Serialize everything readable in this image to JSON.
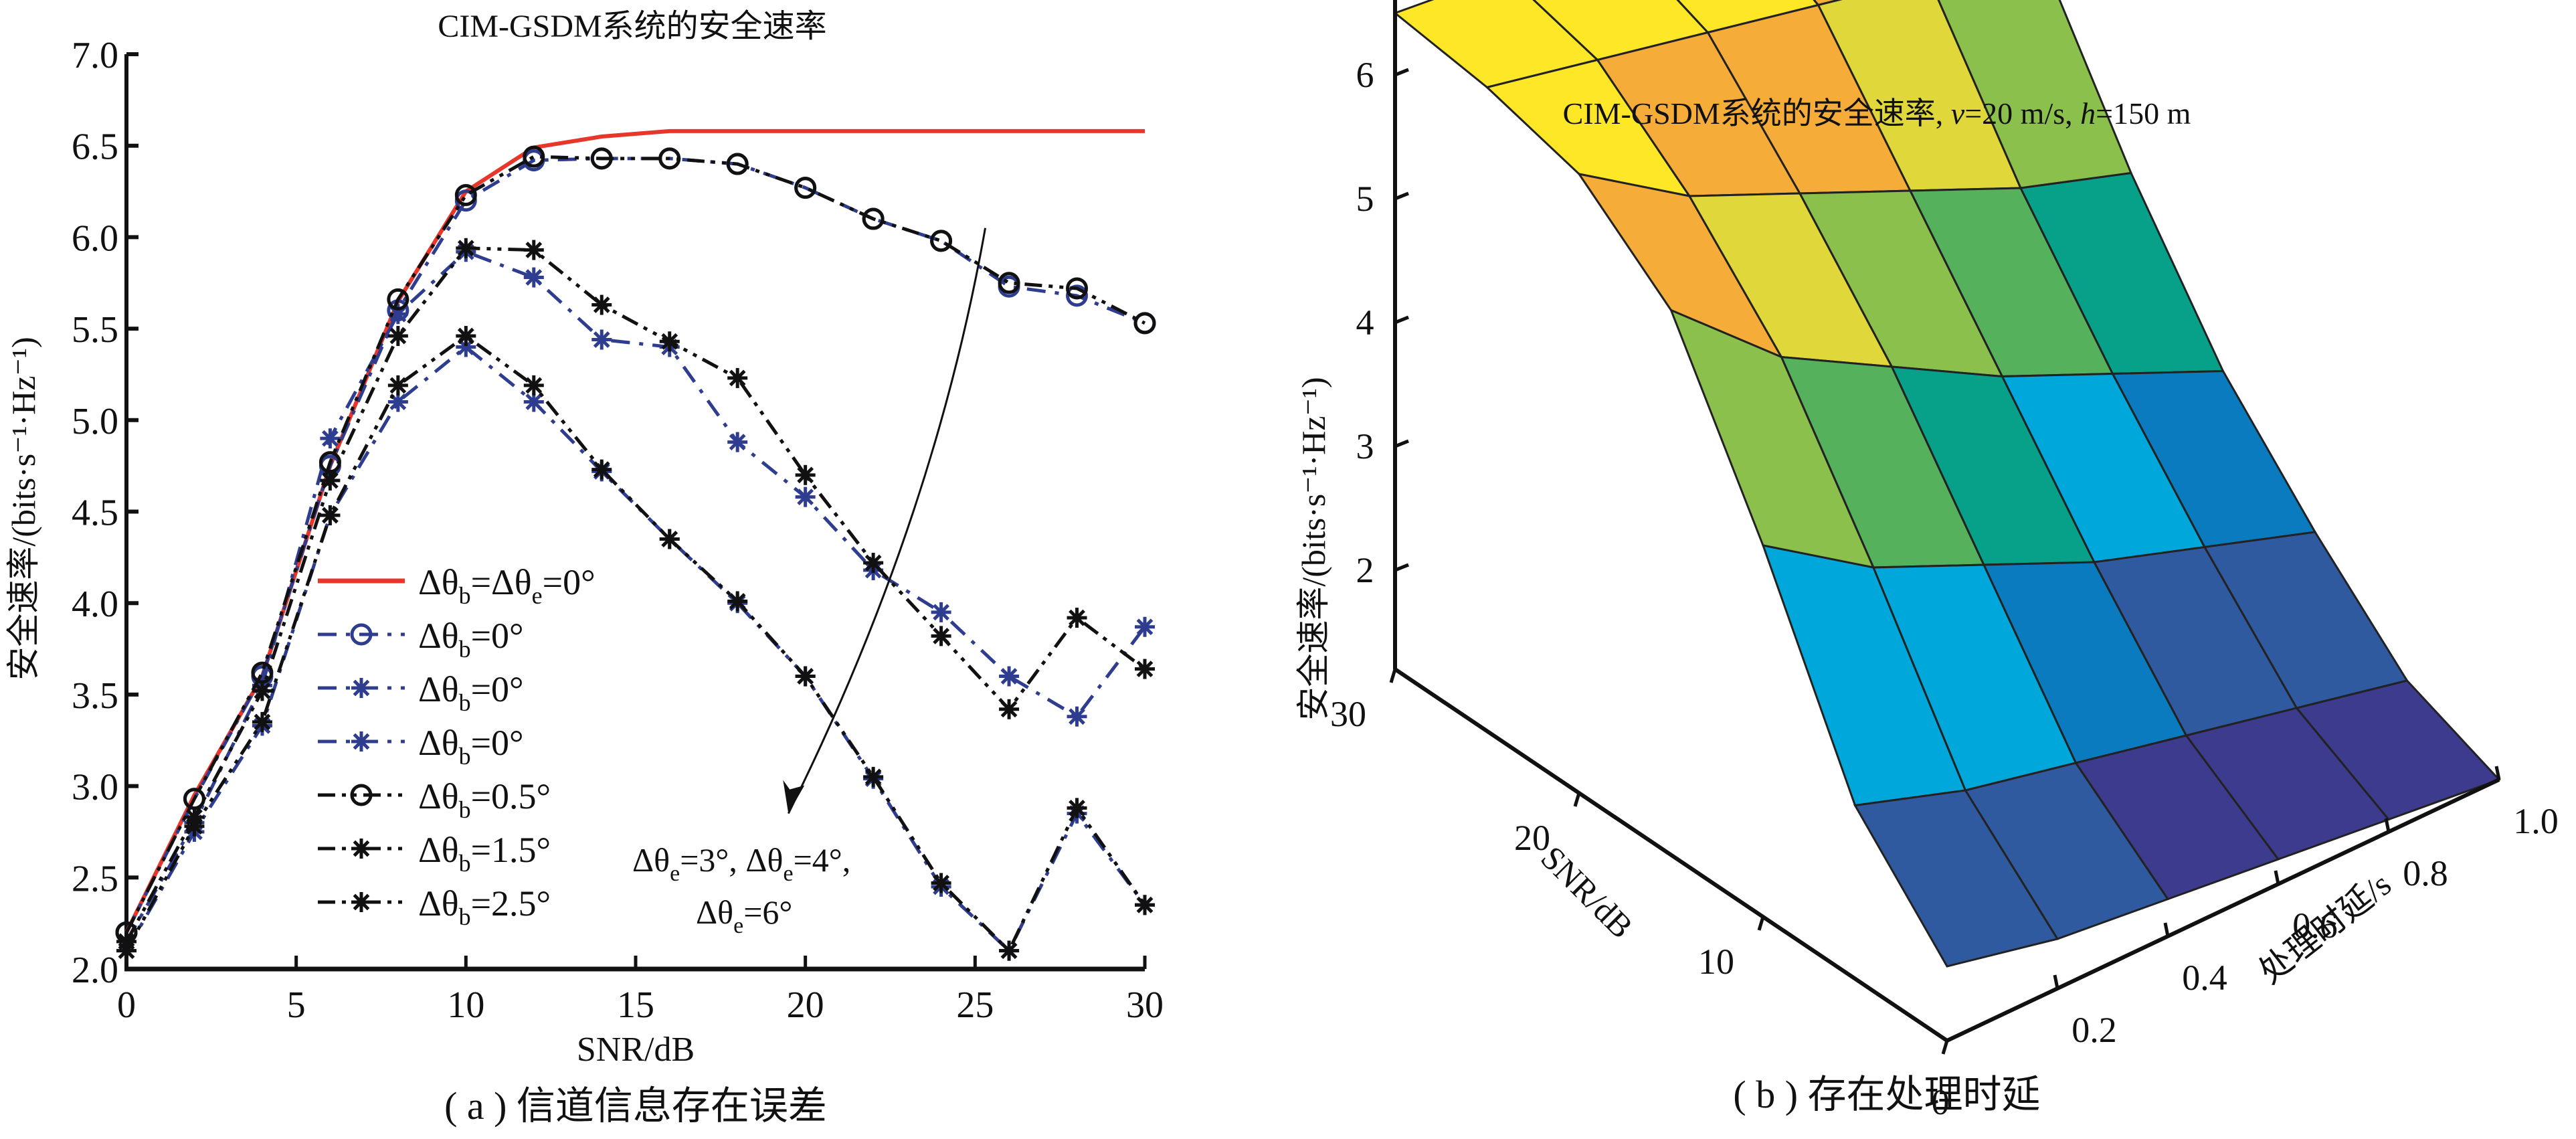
{
  "chart_data": [
    {
      "type": "line",
      "title": "CIM-GSDM系统的安全速率",
      "caption": "( a ) 信道信息存在误差",
      "xlabel": "SNR/dB",
      "ylabel": "安全速率/(bits·s⁻¹·Hz⁻¹)",
      "xlim": [
        0,
        30
      ],
      "ylim": [
        2.0,
        7.0
      ],
      "xticks": [
        "0",
        "5",
        "10",
        "15",
        "20",
        "25",
        "30"
      ],
      "xtick_values": [
        0,
        5,
        10,
        15,
        20,
        25,
        30
      ],
      "yticks": [
        "2.0",
        "2.5",
        "3.0",
        "3.5",
        "4.0",
        "4.5",
        "5.0",
        "5.5",
        "6.0",
        "6.5",
        "7.0"
      ],
      "ytick_values": [
        2.0,
        2.5,
        3.0,
        3.5,
        4.0,
        4.5,
        5.0,
        5.5,
        6.0,
        6.5,
        7.0
      ],
      "grid": false,
      "legend_position": "center-left",
      "x": [
        0,
        2,
        4,
        6,
        8,
        10,
        12,
        14,
        16,
        18,
        20,
        22,
        24,
        26,
        28,
        30
      ],
      "series": [
        {
          "name": "Δθb=Δθe=0°",
          "legend_main": "Δθ",
          "legend_sub": "b",
          "legend_rest": "=Δθ",
          "legend_sub2": "e",
          "legend_tail": "=0°",
          "color": "#e8362b",
          "dash": "solid",
          "marker": "none",
          "values": [
            2.2,
            2.95,
            3.6,
            4.75,
            5.65,
            6.25,
            6.49,
            6.55,
            6.58,
            6.58,
            6.58,
            6.58,
            6.58,
            6.58,
            6.58,
            6.58
          ]
        },
        {
          "name": "Δθb=0°",
          "legend_main": "Δθ",
          "legend_sub": "b",
          "legend_tail": "=0°",
          "color": "#2e3d8f",
          "dash": "dash-dot",
          "marker": "circle",
          "values": [
            2.2,
            2.93,
            3.6,
            4.75,
            5.6,
            6.2,
            6.42,
            6.43,
            6.43,
            6.4,
            6.27,
            6.1,
            5.98,
            5.73,
            5.68,
            5.53
          ]
        },
        {
          "name": "Δθb=0°",
          "legend_main": "Δθ",
          "legend_sub": "b",
          "legend_tail": "=0°",
          "color": "#2e3d8f",
          "dash": "dash-dot",
          "marker": "star",
          "values": [
            2.15,
            2.8,
            3.55,
            4.9,
            5.58,
            5.92,
            5.78,
            5.44,
            5.4,
            4.88,
            4.58,
            4.18,
            3.95,
            3.6,
            3.38,
            3.87
          ]
        },
        {
          "name": "Δθb=0°",
          "legend_main": "Δθ",
          "legend_sub": "b",
          "legend_tail": "=0°",
          "color": "#2e3d8f",
          "dash": "dash-dot",
          "marker": "star",
          "values": [
            2.1,
            2.75,
            3.33,
            4.48,
            5.1,
            5.4,
            5.1,
            4.72,
            4.35,
            4.0,
            3.6,
            3.04,
            2.45,
            2.1,
            2.85,
            2.35
          ]
        },
        {
          "name": "Δθb=0.5°",
          "legend_main": "Δθ",
          "legend_sub": "b",
          "legend_tail": "=0.5°",
          "color": "#111111",
          "dash": "dash-dot-dot",
          "marker": "circle",
          "values": [
            2.2,
            2.93,
            3.62,
            4.77,
            5.66,
            6.23,
            6.44,
            6.43,
            6.43,
            6.4,
            6.27,
            6.1,
            5.98,
            5.75,
            5.72,
            5.53
          ]
        },
        {
          "name": "Δθb=1.5°",
          "legend_main": "Δθ",
          "legend_sub": "b",
          "legend_tail": "=1.5°",
          "color": "#111111",
          "dash": "dash-dot-dot",
          "marker": "star",
          "values": [
            2.15,
            2.83,
            3.52,
            4.67,
            5.46,
            5.94,
            5.93,
            5.63,
            5.43,
            5.23,
            4.7,
            4.22,
            3.82,
            3.42,
            3.92,
            3.64
          ]
        },
        {
          "name": "Δθb=2.5°",
          "legend_main": "Δθ",
          "legend_sub": "b",
          "legend_tail": "=2.5°",
          "color": "#111111",
          "dash": "dash-dot-dot",
          "marker": "star",
          "values": [
            2.1,
            2.78,
            3.35,
            4.48,
            5.19,
            5.46,
            5.19,
            4.73,
            4.35,
            4.01,
            3.6,
            3.05,
            2.47,
            2.1,
            2.88,
            2.35
          ]
        }
      ],
      "annotation": {
        "line1a": "Δθ",
        "line1a_sub": "e",
        "line1a_tail": "=3°",
        "line1b": ", Δθ",
        "line1b_sub": "e",
        "line1b_tail": "=4°,",
        "line2": "Δθ",
        "line2_sub": "e",
        "line2_tail": "=6°",
        "arrow_from": {
          "x": 25.3,
          "y": 6.05
        },
        "arrow_to": {
          "x": 19.5,
          "y": 2.85
        }
      }
    },
    {
      "type": "surface3d",
      "title_main": "CIM-GSDM系统的安全速率, ",
      "title_v": "v",
      "title_v_tail": "=20 m/s, ",
      "title_h": "h",
      "title_h_tail": "=150 m",
      "caption": "( b ) 存在处理时延",
      "xlabel": "SNR/dB",
      "ylabel": "处理时延/s",
      "zlabel": "安全速率/(bits·s⁻¹·Hz⁻¹)",
      "snr_ticks": [
        "0",
        "10",
        "20",
        "30"
      ],
      "delay_ticks": [
        "0.2",
        "0.4",
        "0.6",
        "0.8",
        "1.0"
      ],
      "z_ticks": [
        "2",
        "3",
        "4",
        "5",
        "6"
      ],
      "snr": [
        0,
        5,
        10,
        15,
        20,
        25,
        30
      ],
      "delay": [
        0.0,
        0.2,
        0.4,
        0.6,
        0.8,
        1.0
      ],
      "colormap": [
        "#3d3b8e",
        "#2f5aa0",
        "#0a7bbf",
        "#00a7db",
        "#07a18a",
        "#55b15b",
        "#8cc04c",
        "#e0d83a",
        "#f6ac39",
        "#fde726"
      ],
      "z": [
        [
          1.8,
          1.6,
          1.5,
          1.4,
          1.3,
          1.2
        ],
        [
          2.6,
          2.3,
          2.1,
          1.9,
          1.7,
          1.5
        ],
        [
          4.2,
          3.6,
          3.2,
          2.8,
          2.5,
          2.2
        ],
        [
          5.6,
          4.8,
          4.3,
          3.8,
          3.4,
          3.0
        ],
        [
          6.2,
          5.6,
          5.2,
          4.8,
          4.4,
          4.1
        ],
        [
          6.4,
          6.2,
          6.0,
          5.8,
          5.6,
          5.4
        ],
        [
          6.5,
          6.4,
          6.3,
          6.2,
          6.1,
          6.0
        ]
      ]
    }
  ]
}
